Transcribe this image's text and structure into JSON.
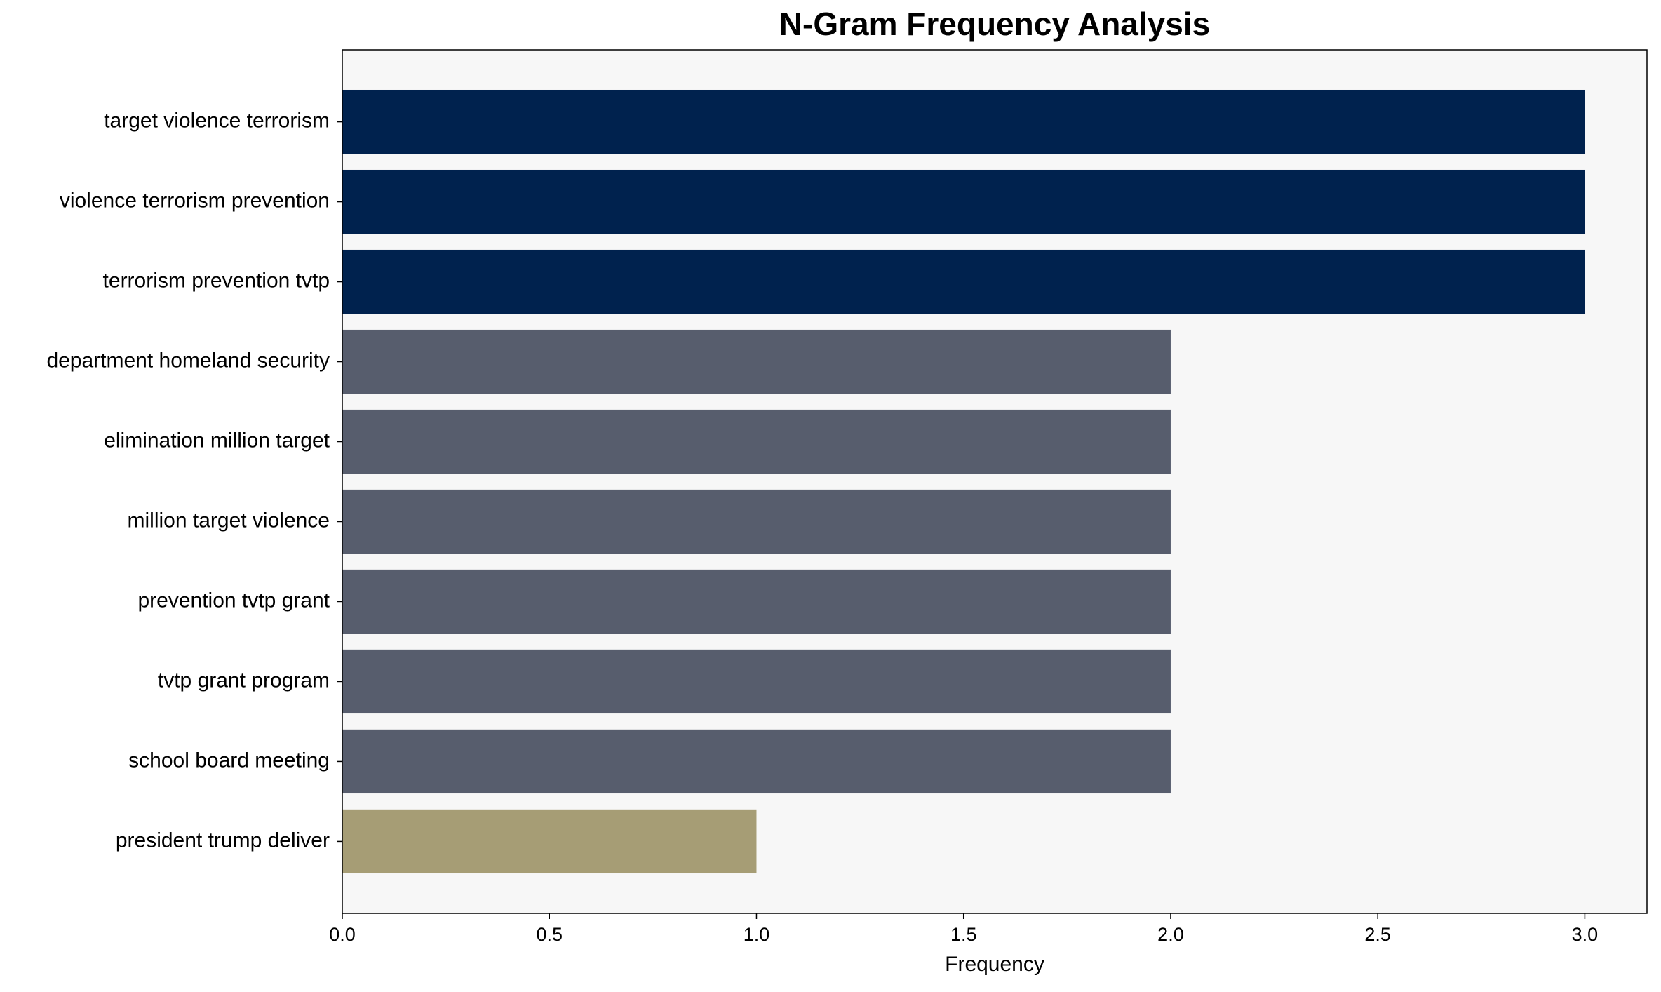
{
  "chart_data": {
    "type": "barh",
    "title": "N-Gram Frequency Analysis",
    "x_label": "Frequency",
    "categories": [
      "target violence terrorism",
      "violence terrorism prevention",
      "terrorism prevention tvtp",
      "department homeland security",
      "elimination million target",
      "million target violence",
      "prevention tvtp grant",
      "tvtp grant program",
      "school board meeting",
      "president trump deliver"
    ],
    "values": [
      3,
      3,
      3,
      2,
      2,
      2,
      2,
      2,
      2,
      1
    ],
    "colors": [
      "#00224e",
      "#00224e",
      "#00224e",
      "#575d6d",
      "#575d6d",
      "#575d6d",
      "#575d6d",
      "#575d6d",
      "#575d6d",
      "#a69d75"
    ],
    "xlim": [
      0,
      3.15
    ],
    "xticks": [
      {
        "value": 0,
        "label": "0.0"
      },
      {
        "value": 0.5,
        "label": "0.5"
      },
      {
        "value": 1,
        "label": "1.0"
      },
      {
        "value": 1.5,
        "label": "1.5"
      },
      {
        "value": 2,
        "label": "2.0"
      },
      {
        "value": 2.5,
        "label": "2.5"
      },
      {
        "value": 3,
        "label": "3.0"
      }
    ],
    "background": "#f7f7f7"
  }
}
